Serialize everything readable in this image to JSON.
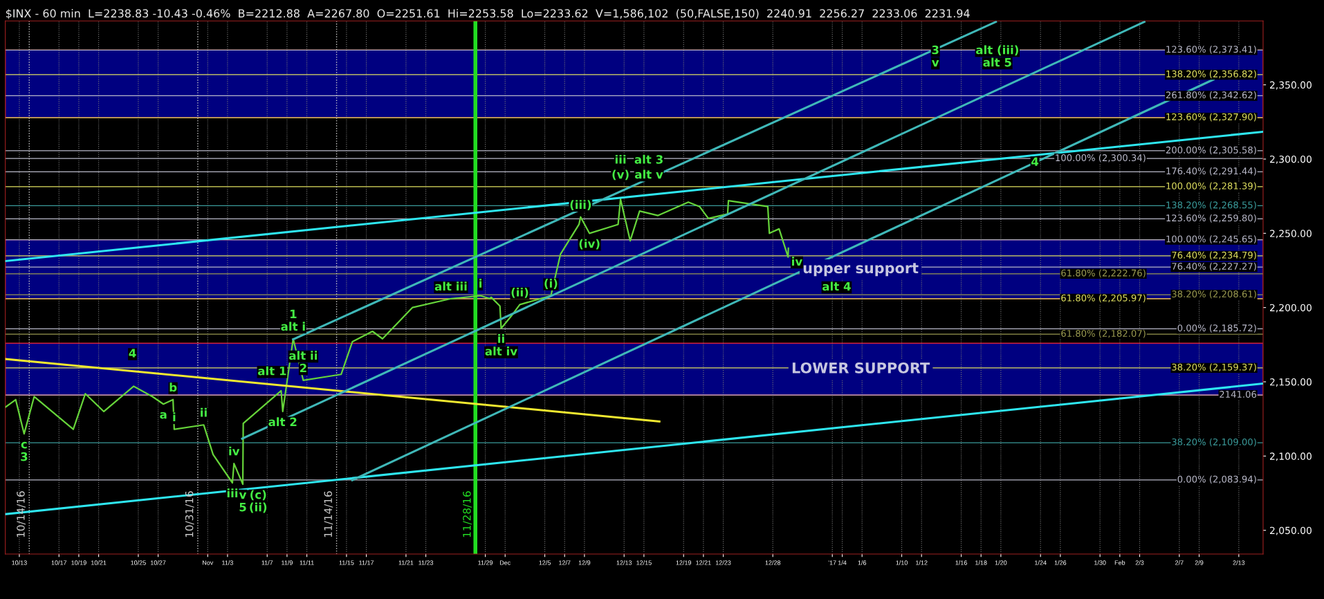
{
  "chart_data": {
    "type": "line",
    "title": "$INX - 60 min  L=2238.83 -10.43 -0.46%  B=2212.88  A=2267.80  O=2251.61  Hi=2253.58  Lo=2233.62  V=1,586,102  (50,FALSE,150)  2240.91  2256.27  2233.06  2231.94",
    "xlim": [
      "2016-10-11T14:03",
      "2017-02-15T10:48"
    ],
    "xticks": [
      {
        "value": "2016-10-13",
        "label": "10/13"
      },
      {
        "value": "2016-10-17",
        "label": "10/17"
      },
      {
        "value": "2016-10-19",
        "label": "10/19"
      },
      {
        "value": "2016-10-21",
        "label": "10/21"
      },
      {
        "value": "2016-10-25",
        "label": "10/25"
      },
      {
        "value": "2016-10-27",
        "label": "10/27"
      },
      {
        "value": "2016-11-01",
        "label": "Nov"
      },
      {
        "value": "2016-11-03",
        "label": "11/3"
      },
      {
        "value": "2016-11-07",
        "label": "11/7"
      },
      {
        "value": "2016-11-09",
        "label": "11/9"
      },
      {
        "value": "2016-11-11",
        "label": "11/11"
      },
      {
        "value": "2016-11-15",
        "label": "11/15"
      },
      {
        "value": "2016-11-17",
        "label": "11/17"
      },
      {
        "value": "2016-11-21",
        "label": "11/21"
      },
      {
        "value": "2016-11-23",
        "label": "11/23"
      },
      {
        "value": "2016-11-29",
        "label": "11/29"
      },
      {
        "value": "2016-12-01",
        "label": "Dec"
      },
      {
        "value": "2016-12-05",
        "label": "12/5"
      },
      {
        "value": "2016-12-07",
        "label": "12/7"
      },
      {
        "value": "2016-12-09",
        "label": "12/9"
      },
      {
        "value": "2016-12-13",
        "label": "12/13"
      },
      {
        "value": "2016-12-15",
        "label": "12/15"
      },
      {
        "value": "2016-12-19",
        "label": "12/19"
      },
      {
        "value": "2016-12-21",
        "label": "12/21"
      },
      {
        "value": "2016-12-23",
        "label": "12/23"
      },
      {
        "value": "2016-12-28",
        "label": "12/28"
      },
      {
        "value": "2017-01-03",
        "label": "'17"
      },
      {
        "value": "2017-01-04",
        "label": "1/4"
      },
      {
        "value": "2017-01-06",
        "label": "1/6"
      },
      {
        "value": "2017-01-10",
        "label": "1/10"
      },
      {
        "value": "2017-01-12",
        "label": "1/12"
      },
      {
        "value": "2017-01-16",
        "label": "1/16"
      },
      {
        "value": "2017-01-18",
        "label": "1/18"
      },
      {
        "value": "2017-01-20",
        "label": "1/20"
      },
      {
        "value": "2017-01-24",
        "label": "1/24"
      },
      {
        "value": "2017-01-26",
        "label": "1/26"
      },
      {
        "value": "2017-01-30",
        "label": "1/30"
      },
      {
        "value": "2017-02-01",
        "label": "Feb"
      },
      {
        "value": "2017-02-03",
        "label": "2/3"
      },
      {
        "value": "2017-02-07",
        "label": "2/7"
      },
      {
        "value": "2017-02-09",
        "label": "2/9"
      },
      {
        "value": "2017-02-13",
        "label": "2/13"
      }
    ],
    "ylim": [
      2034,
      2393
    ],
    "yticks": [
      {
        "value": 2050,
        "label": "2,050.00"
      },
      {
        "value": 2100,
        "label": "2,100.00"
      },
      {
        "value": 2150,
        "label": "2,150.00"
      },
      {
        "value": 2200,
        "label": "2,200.00"
      },
      {
        "value": 2250,
        "label": "2,250.00"
      },
      {
        "value": 2300,
        "label": "2,300.00"
      },
      {
        "value": 2350,
        "label": "2,350.00"
      }
    ],
    "grid": "x",
    "marker": "none",
    "line_style": "solid",
    "series": [
      {
        "color": "#66d43a",
        "x": [
          "2016-10-11T14:50",
          "2016-10-12T15:12",
          "2016-10-13T11:39",
          "2016-10-14T11:55",
          "2016-10-18T10:36",
          "2016-10-19T15:48",
          "2016-10-21T12:36",
          "2016-10-24T12:53",
          "2016-10-26T10:32",
          "2016-10-27T12:45",
          "2016-10-28T12:06",
          "2016-10-28T14:58",
          "2016-10-31T14:20",
          "2016-11-01T13:04",
          "2016-11-03T11:47",
          "2016-11-03T15:36",
          "2016-11-04T13:01",
          "2016-11-04T14:03",
          "2016-11-08T09:46",
          "2016-11-08T13:40",
          "2016-11-09T14:58",
          "2016-11-10T15:18",
          "2016-11-14T11:00",
          "2016-11-15T14:15",
          "2016-11-17T14:50",
          "2016-11-18T15:10",
          "2016-11-21T15:28",
          "2016-11-25T12:57",
          "2016-11-28T12:18",
          "2016-11-29T11:11",
          "2016-11-29T14:03",
          "2016-11-30T11:27",
          "2016-11-30T14:22",
          "2016-12-01T14:07",
          "2016-12-02T11:31",
          "2016-12-05T14:46",
          "2016-12-06T14:03",
          "2016-12-08T10:48",
          "2016-12-08T14:42",
          "2016-12-09T12:06",
          "2016-12-12T09:30",
          "2016-12-12T15:21",
          "2016-12-13T14:42",
          "2016-12-14T13:32",
          "2016-12-16T10:09",
          "2016-12-19T11:27",
          "2016-12-20T14:38",
          "2016-12-21T12:03",
          "2016-12-23T10:36",
          "2016-12-23T12:33",
          "2016-12-27T11:50",
          "2016-12-27T15:40",
          "2016-12-28T15:09",
          "2016-12-29T12:57",
          "2016-12-29T13:40"
        ],
        "values": [
          2133,
          2138,
          2115,
          2140,
          2118,
          2142,
          2130,
          2147,
          2140,
          2135,
          2138,
          2118,
          2121,
          2101,
          2082,
          2095,
          2081,
          2122,
          2144,
          2130,
          2179,
          2151,
          2155,
          2177,
          2184,
          2179,
          2200,
          2206,
          2208,
          2206,
          2207,
          2201,
          2186,
          2194,
          2202,
          2208,
          2236,
          2256,
          2261,
          2250,
          2256,
          2273,
          2245,
          2265,
          2262,
          2271,
          2268,
          2260,
          2263,
          2272,
          2268,
          2250,
          2253,
          2234,
          2240
        ]
      },
      {
        "color": "#2ee6f0",
        "x": [
          "2016-10-11T14:03",
          "2017-02-15T10:48"
        ],
        "values": [
          2231.3,
          2318.4
        ]
      },
      {
        "color": "#2ee6f0",
        "x": [
          "2016-10-11T14:03",
          "2017-02-15T10:48"
        ],
        "values": [
          2060.9,
          2148.8
        ]
      },
      {
        "color": "#f0e830",
        "x": [
          "2016-10-11T14:03",
          "2016-12-16T13:24"
        ],
        "values": [
          2165.4,
          2123.3
        ]
      },
      {
        "color": "#3fb8b8",
        "x": [
          "2016-11-09T14:42",
          "2017-01-19T12:03"
        ],
        "values": [
          2178.6,
          2392.4
        ]
      },
      {
        "color": "#3fb8b8",
        "x": [
          "2016-11-04T11:27",
          "2017-02-03T11:27"
        ],
        "values": [
          2111.7,
          2392.4
        ]
      },
      {
        "color": "#3fb8b8",
        "x": [
          "2016-11-15T14:03",
          "2017-02-10T10:48"
        ],
        "values": [
          2083.8,
          2353.6
        ]
      }
    ],
    "bands": [
      {
        "axis": "y",
        "from": 2205.97,
        "to": 2245.65,
        "label": "upper support",
        "color": "#000080"
      },
      {
        "axis": "y",
        "from": 2141.06,
        "to": 2176,
        "label": "LOWER SUPPORT",
        "color": "#000080"
      },
      {
        "axis": "y",
        "from": 2327.9,
        "to": 2373.41,
        "color": "#000080"
      }
    ],
    "ref_lines": [
      {
        "axis": "y",
        "value": 2373.41,
        "label": "123.60% (2,373.41)",
        "color": "#b8b8c8"
      },
      {
        "axis": "y",
        "value": 2356.82,
        "label": "138.20% (2,356.82)",
        "color": "#e0e060"
      },
      {
        "axis": "y",
        "value": 2342.62,
        "label": "261.80% (2,342.62)",
        "color": "#b8b8c8"
      },
      {
        "axis": "y",
        "value": 2327.9,
        "label": "123.60% (2,327.90)",
        "color": "#e0e060"
      },
      {
        "axis": "y",
        "value": 2305.58,
        "label": "200.00% (2,305.58)",
        "color": "#b8b8c8"
      },
      {
        "axis": "y",
        "value": 2300.34,
        "label": "100.00% (2,300.34)",
        "color": "#b8b8c8"
      },
      {
        "axis": "y",
        "value": 2291.44,
        "label": "176.40% (2,291.44)",
        "color": "#b8b8c8"
      },
      {
        "axis": "y",
        "value": 2281.39,
        "label": "100.00% (2,281.39)",
        "color": "#e0e060"
      },
      {
        "axis": "y",
        "value": 2268.55,
        "label": "138.20% (2,268.55)",
        "color": "#3a9a9a"
      },
      {
        "axis": "y",
        "value": 2259.8,
        "label": "123.60% (2,259.80)",
        "color": "#b8b8c8"
      },
      {
        "axis": "y",
        "value": 2245.65,
        "label": "100.00% (2,245.65)",
        "color": "#b8b8c8"
      },
      {
        "axis": "y",
        "value": 2234.79,
        "label": "76.40% (2,234.79)",
        "color": "#e0e060"
      },
      {
        "axis": "y",
        "value": 2227.27,
        "label": "76.40% (2,227.27)",
        "color": "#b8b8c8"
      },
      {
        "axis": "y",
        "value": 2222.76,
        "label": "61.80% (2,222.76)",
        "color": "#9a9a50"
      },
      {
        "axis": "y",
        "value": 2208.61,
        "label": "38.20% (2,208.61)",
        "color": "#9a9a50"
      },
      {
        "axis": "y",
        "value": 2205.97,
        "label": "61.80% (2,205.97)",
        "color": "#e0e060"
      },
      {
        "axis": "y",
        "value": 2185.72,
        "label": "0.00% (2,185.72)",
        "color": "#b8b8c8"
      },
      {
        "axis": "y",
        "value": 2182.07,
        "label": "61.80% (2,182.07)",
        "color": "#9a9a50"
      },
      {
        "axis": "y",
        "value": 2159.37,
        "label": "38.20% (2,159.37)",
        "color": "#e0e060"
      },
      {
        "axis": "y",
        "value": 2141.06,
        "label": "2141.06",
        "color": "#b8b8c8"
      },
      {
        "axis": "y",
        "value": 2109.0,
        "label": "38.20% (2,109.00)",
        "color": "#3a9a9a"
      },
      {
        "axis": "y",
        "value": 2083.94,
        "label": "0.00% (2,083.94)",
        "color": "#b8b8c8"
      },
      {
        "axis": "x",
        "value": "2016-10-14",
        "label": "10/14/16",
        "color": "#c8c8c8",
        "line_style": "dotted"
      },
      {
        "axis": "x",
        "value": "2016-10-31",
        "label": "10/31/16",
        "color": "#c8c8c8",
        "line_style": "dotted"
      },
      {
        "axis": "x",
        "value": "2016-11-14",
        "label": "11/14/16",
        "color": "#c8c8c8",
        "line_style": "dotted"
      },
      {
        "axis": "x",
        "value": "2016-11-28",
        "label": "11/28/16",
        "color": "#22dd22",
        "line_style": "solid"
      }
    ],
    "annotations": [
      {
        "text": "c",
        "x": "2016-10-13T11:39",
        "y": 2115
      },
      {
        "text": "3",
        "x": "2016-10-13T11:39",
        "y": 2115
      },
      {
        "text": "4",
        "x": "2016-10-24T09:57",
        "y": 2161
      },
      {
        "text": "a",
        "x": "2016-10-27T12:45",
        "y": 2135
      },
      {
        "text": "b",
        "x": "2016-10-28T12:06",
        "y": 2138
      },
      {
        "text": "i",
        "x": "2016-10-28T14:58",
        "y": 2118
      },
      {
        "text": "ii",
        "x": "2016-10-31T14:20",
        "y": 2121
      },
      {
        "text": "iii",
        "x": "2016-11-03T11:47",
        "y": 2082
      },
      {
        "text": "iv",
        "x": "2016-11-03T15:36",
        "y": 2095
      },
      {
        "text": "v",
        "x": "2016-11-04T13:01",
        "y": 2081
      },
      {
        "text": "5",
        "x": "2016-11-04T13:01",
        "y": 2081
      },
      {
        "text": "(c)",
        "x": "2016-11-04T13:01",
        "y": 2081
      },
      {
        "text": "(ii)",
        "x": "2016-11-04T13:01",
        "y": 2081
      },
      {
        "text": "alt i",
        "x": "2016-11-09T14:58",
        "y": 2179
      },
      {
        "text": "1",
        "x": "2016-11-09T14:58",
        "y": 2179
      },
      {
        "text": "alt 1",
        "x": "2016-11-07T12:00",
        "y": 2149
      },
      {
        "text": "2",
        "x": "2016-11-10T15:18",
        "y": 2151
      },
      {
        "text": "alt ii",
        "x": "2016-11-10T15:18",
        "y": 2151
      },
      {
        "text": "alt 2",
        "x": "2016-11-08T13:40",
        "y": 2130
      },
      {
        "text": "alt iii",
        "x": "2016-11-25T12:57",
        "y": 2206
      },
      {
        "text": "i",
        "x": "2016-11-28T12:18",
        "y": 2208
      },
      {
        "text": "(i)",
        "x": "2016-12-05T14:46",
        "y": 2208
      },
      {
        "text": "(ii)",
        "x": "2016-12-02T11:31",
        "y": 2202
      },
      {
        "text": "ii",
        "x": "2016-11-30T14:22",
        "y": 2186
      },
      {
        "text": "alt iv",
        "x": "2016-11-30T14:22",
        "y": 2186
      },
      {
        "text": "(iii)",
        "x": "2016-12-08T14:42",
        "y": 2261
      },
      {
        "text": "(iv)",
        "x": "2016-12-09T12:06",
        "y": 2250
      },
      {
        "text": "(v)",
        "x": "2016-12-12T15:21",
        "y": 2281.39
      },
      {
        "text": "alt v",
        "x": "2016-12-15T12:00",
        "y": 2281.39
      },
      {
        "text": "iii",
        "x": "2016-12-12T15:21",
        "y": 2291.44
      },
      {
        "text": "alt 3",
        "x": "2016-12-15T12:00",
        "y": 2291.44
      },
      {
        "text": "iv",
        "x": "2016-12-30T10:09",
        "y": 2222.76
      },
      {
        "text": "alt 4",
        "x": "2017-01-03T10:28",
        "y": 2205.97
      },
      {
        "text": "v",
        "x": "2017-01-13T09:30",
        "y": 2356.82
      },
      {
        "text": "3",
        "x": "2017-01-13T09:30",
        "y": 2356.82
      },
      {
        "text": "alt 5",
        "x": "2017-01-19T15:36",
        "y": 2356.82
      },
      {
        "text": "alt (iii)",
        "x": "2017-01-19T15:36",
        "y": 2356.82
      },
      {
        "text": "4",
        "x": "2017-01-23T10:25",
        "y": 2290
      }
    ]
  }
}
